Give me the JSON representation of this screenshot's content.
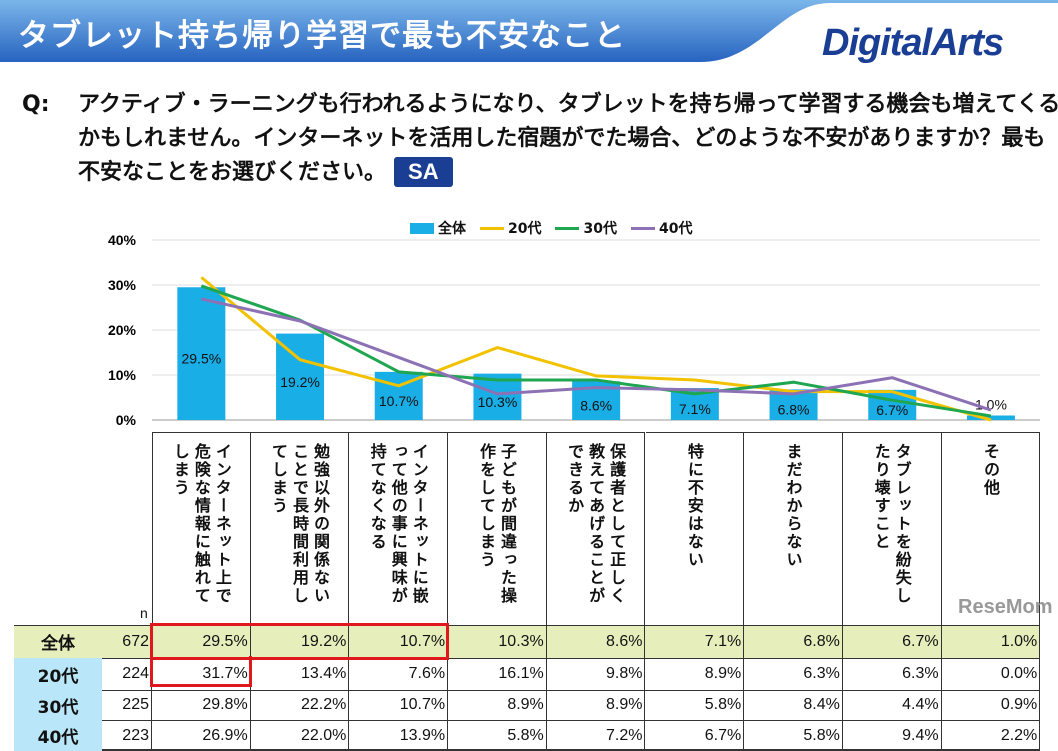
{
  "header": {
    "title": "タブレット持ち帰り学習で最も不安なこと",
    "logo": "DigitalArts"
  },
  "question": {
    "label": "Q:",
    "text": "アクティブ・ラーニングも行われるようになり、タブレットを持ち帰って学習する機会も増えてくるかもしれません。インターネットを活用した宿題がでた場合、どのような不安がありますか？最も不安なことをお選びください。",
    "badge": "SA"
  },
  "colors": {
    "bar": "#1aaee6",
    "s20": "#f2c200",
    "s30": "#1fa650",
    "s40": "#8c72b4",
    "header": "#2a6cc4",
    "total_row": "#e6efbc",
    "age_label": "#b9e6f8",
    "highlight": "#e0181e"
  },
  "chart_data": {
    "type": "bar+line",
    "categories": [
      "インターネット上で危険な情報に触れてしまう",
      "勉強以外の関係ないことで長時間利用してしまう",
      "インターネットに嵌って他の事に興味が持てなくなる",
      "子どもが間違った操作をしてしまう",
      "保護者として正しく教えてあげることができるか",
      "特に不安はない",
      "まだわからない",
      "タブレットを紛失したり壊すこと",
      "その他"
    ],
    "ylim": [
      0,
      40
    ],
    "yticks": [
      "0%",
      "10%",
      "20%",
      "30%",
      "40%"
    ],
    "legend_position": "top",
    "series": [
      {
        "name": "全体",
        "type": "bar",
        "values": [
          29.5,
          19.2,
          10.7,
          10.3,
          8.6,
          7.1,
          6.8,
          6.7,
          1.0
        ]
      },
      {
        "name": "20代",
        "type": "line",
        "values": [
          31.7,
          13.4,
          7.6,
          16.1,
          9.8,
          8.9,
          6.3,
          6.3,
          0.0
        ]
      },
      {
        "name": "30代",
        "type": "line",
        "values": [
          29.8,
          22.2,
          10.7,
          8.9,
          8.9,
          5.8,
          8.4,
          4.4,
          0.9
        ]
      },
      {
        "name": "40代",
        "type": "line",
        "values": [
          26.9,
          22.0,
          13.9,
          5.8,
          7.2,
          6.7,
          5.8,
          9.4,
          2.2
        ]
      }
    ],
    "bar_labels": [
      "29.5%",
      "19.2%",
      "10.7%",
      "10.3%",
      "8.6%",
      "7.1%",
      "6.8%",
      "6.7%",
      "1.0%"
    ]
  },
  "table": {
    "n_header": "n",
    "rows": [
      {
        "label": "全体",
        "n": "672",
        "values": [
          "29.5%",
          "19.2%",
          "10.7%",
          "10.3%",
          "8.6%",
          "7.1%",
          "6.8%",
          "6.7%",
          "1.0%"
        ]
      },
      {
        "label": "20代",
        "n": "224",
        "values": [
          "31.7%",
          "13.4%",
          "7.6%",
          "16.1%",
          "9.8%",
          "8.9%",
          "6.3%",
          "6.3%",
          "0.0%"
        ]
      },
      {
        "label": "30代",
        "n": "225",
        "values": [
          "29.8%",
          "22.2%",
          "10.7%",
          "8.9%",
          "8.9%",
          "5.8%",
          "8.4%",
          "4.4%",
          "0.9%"
        ]
      },
      {
        "label": "40代",
        "n": "223",
        "values": [
          "26.9%",
          "22.0%",
          "13.9%",
          "5.8%",
          "7.2%",
          "6.7%",
          "5.8%",
          "9.4%",
          "2.2%"
        ]
      }
    ]
  },
  "watermark": "ReseMom"
}
